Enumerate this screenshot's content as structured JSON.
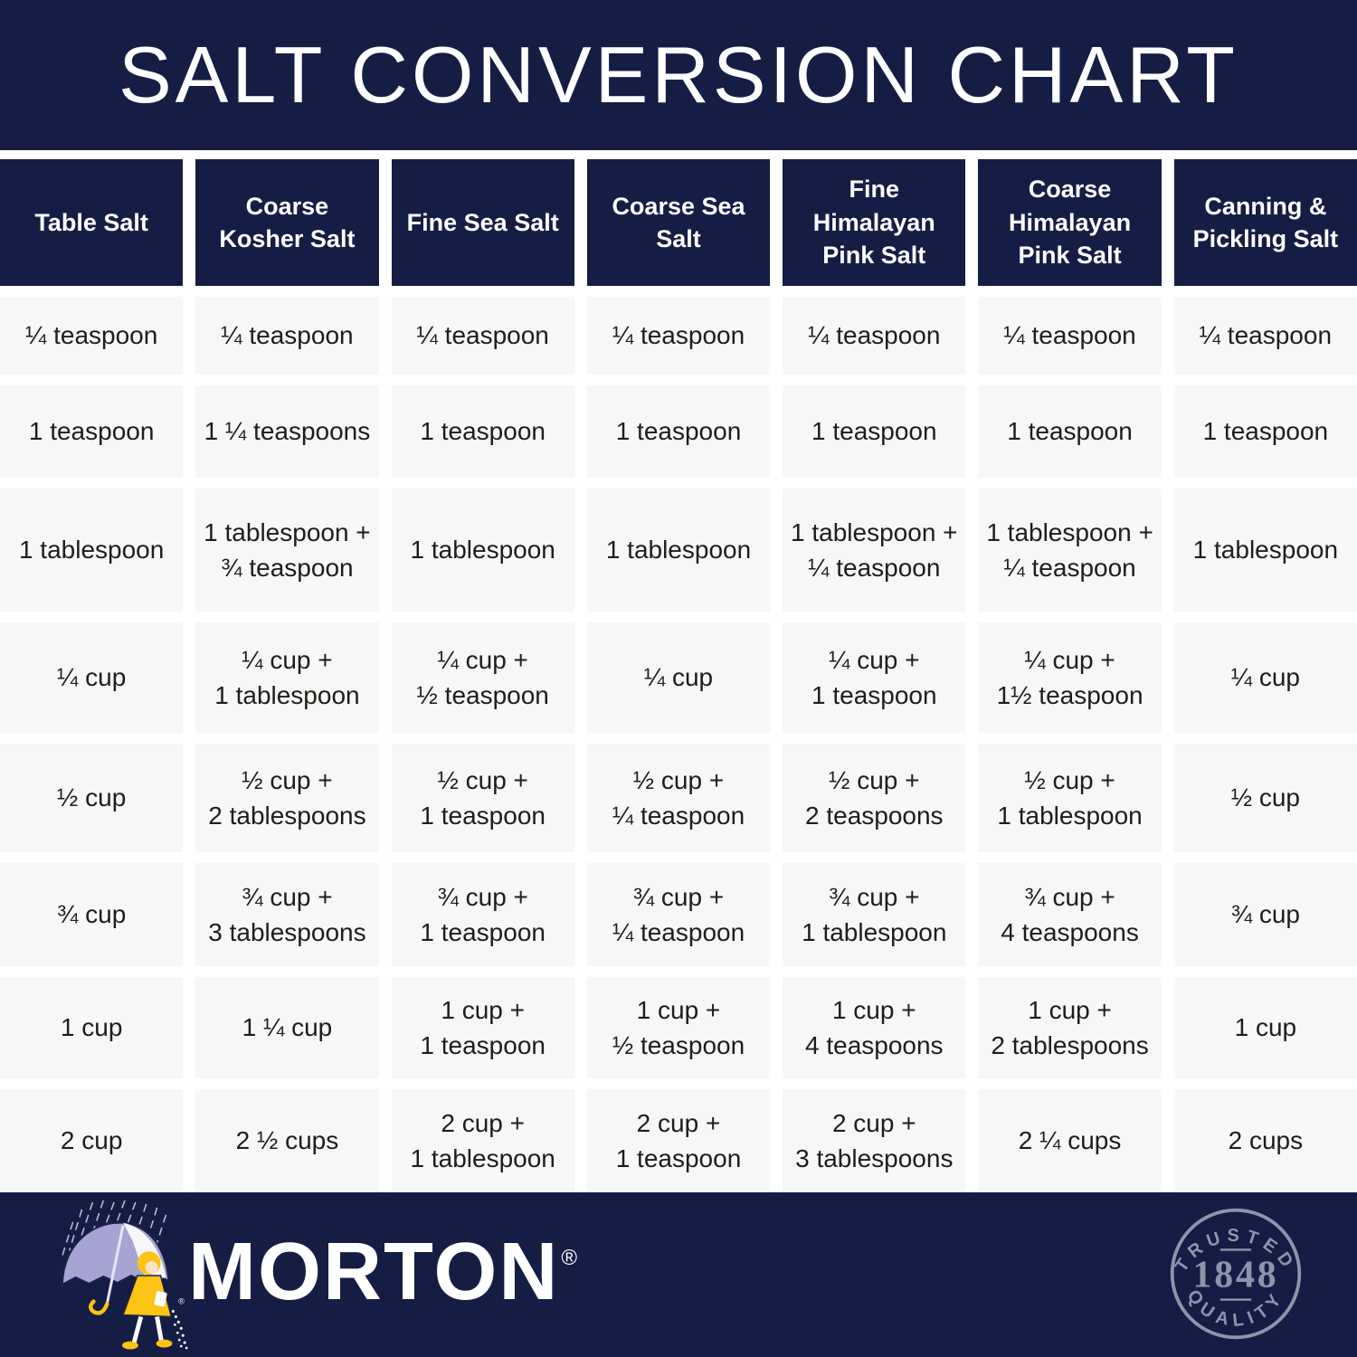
{
  "title": "SALT CONVERSION CHART",
  "chart_data": {
    "type": "table",
    "title": "SALT CONVERSION CHART",
    "columns": [
      "Table Salt",
      "Coarse Kosher Salt",
      "Fine Sea Salt",
      "Coarse Sea Salt",
      "Fine Himalayan Pink Salt",
      "Coarse Himalayan Pink Salt",
      "Canning & Pickling Salt"
    ],
    "rows": [
      [
        "¼ teaspoon",
        "¼ teaspoon",
        "¼ teaspoon",
        "¼ teaspoon",
        "¼ teaspoon",
        "¼ teaspoon",
        "¼ teaspoon"
      ],
      [
        "1 teaspoon",
        "1 ¼ teaspoons",
        "1 teaspoon",
        "1 teaspoon",
        "1 teaspoon",
        "1 teaspoon",
        "1 teaspoon"
      ],
      [
        "1 tablespoon",
        "1 tablespoon +\n¾ teaspoon",
        "1 tablespoon",
        "1 tablespoon",
        "1 tablespoon +\n¼ teaspoon",
        "1 tablespoon +\n¼ teaspoon",
        "1 tablespoon"
      ],
      [
        "¼ cup",
        "¼ cup +\n1 tablespoon",
        "¼ cup +\n½ teaspoon",
        "¼ cup",
        "¼ cup +\n1 teaspoon",
        "¼ cup +\n1½ teaspoon",
        "¼ cup"
      ],
      [
        "½ cup",
        "½ cup +\n2 tablespoons",
        "½ cup +\n1 teaspoon",
        "½ cup +\n¼ teaspoon",
        "½ cup +\n2 teaspoons",
        "½ cup +\n1 tablespoon",
        "½ cup"
      ],
      [
        "¾ cup",
        "¾ cup +\n3 tablespoons",
        "¾ cup +\n1 teaspoon",
        "¾ cup +\n¼ teaspoon",
        "¾ cup +\n1 tablespoon",
        "¾ cup +\n4 teaspoons",
        "¾ cup"
      ],
      [
        "1 cup",
        "1 ¼ cup",
        "1 cup +\n1 teaspoon",
        "1 cup +\n½ teaspoon",
        "1 cup +\n4 teaspoons",
        "1 cup +\n2 tablespoons",
        "1 cup"
      ],
      [
        "2 cup",
        "2 ½ cups",
        "2 cup +\n1 tablespoon",
        "2 cup +\n1 teaspoon",
        "2 cup +\n3 tablespoons",
        "2 ¼ cups",
        "2 cups"
      ]
    ]
  },
  "footer": {
    "brand": "MORTON",
    "registered": "®",
    "seal": {
      "top": "TRUSTED",
      "year": "1848",
      "bottom": "QUALITY"
    }
  },
  "colors": {
    "navy": "#161d44",
    "cell_bg": "#f7f7f6",
    "cell_text": "#1d1d1b",
    "white": "#ffffff",
    "seal_gray": "#8d95aa",
    "umbrella_lavender": "#a6a4d3",
    "morton_yellow": "#fdc315"
  }
}
